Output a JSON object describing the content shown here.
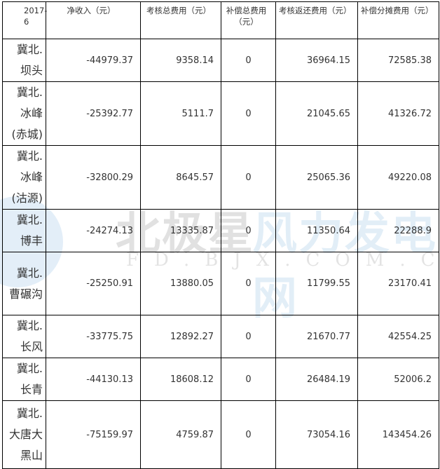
{
  "headers": [
    "2017-6",
    "净收入（元）",
    "考核总费用（元）",
    "补偿总费用（元）",
    "考核返还费用（元）",
    "补偿分摊费用（元）"
  ],
  "rows": [
    {
      "name": "冀北.坝头",
      "values": [
        "-44979.37",
        "9358.14",
        "0",
        "36964.15",
        "72585.38"
      ]
    },
    {
      "name": "冀北.冰峰(赤城)",
      "values": [
        "-25392.77",
        "5111.7",
        "0",
        "21045.65",
        "41326.72"
      ]
    },
    {
      "name": "冀北.冰峰(沽源)",
      "values": [
        "-32800.29",
        "8645.57",
        "0",
        "25065.36",
        "49220.08"
      ]
    },
    {
      "name": "冀北.博丰",
      "values": [
        "-24274.13",
        "13335.87",
        "0",
        "11350.64",
        "22288.9"
      ]
    },
    {
      "name": "冀北.曹碾沟",
      "values": [
        "-25250.91",
        "13880.05",
        "0",
        "11799.55",
        "23170.41"
      ]
    },
    {
      "name": "冀北.长风",
      "values": [
        "-33775.75",
        "12892.27",
        "0",
        "21670.77",
        "42554.25"
      ]
    },
    {
      "name": "冀北.长青",
      "values": [
        "-44130.13",
        "18608.12",
        "0",
        "26484.19",
        "52006.2"
      ]
    },
    {
      "name": "冀北.大唐大黑山",
      "values": [
        "-75159.97",
        "4759.87",
        "0",
        "73054.16",
        "143454.26"
      ]
    }
  ],
  "watermark": {
    "cn_dark": "北极星",
    "cn_blue": "风力发电网",
    "en": "FD.BJX.COM.CN"
  }
}
